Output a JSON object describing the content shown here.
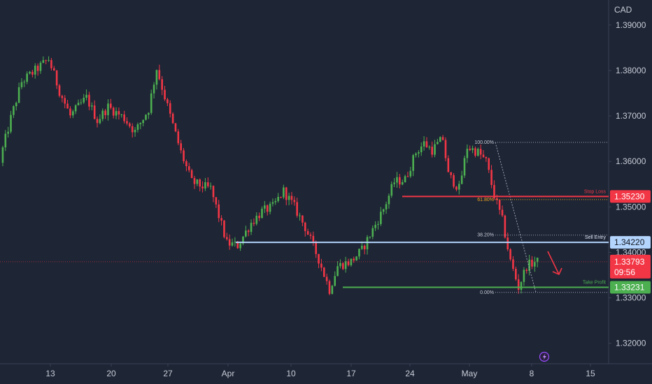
{
  "chart_data": {
    "type": "candlestick",
    "symbol_currency": "CAD",
    "ylim": [
      1.3155,
      1.3955
    ],
    "y_ticks": [
      "1.39000",
      "1.38000",
      "1.37000",
      "1.36000",
      "1.35000",
      "1.34000",
      "1.33000",
      "1.32000"
    ],
    "x_ticks": [
      "13",
      "20",
      "27",
      "Apr",
      "10",
      "17",
      "24",
      "May",
      "8",
      "15"
    ],
    "grid": false,
    "colors": {
      "background": "#1e2535",
      "up": "#4caf50",
      "down": "#f23645",
      "stop_loss": "#f23645",
      "entry": "#b3d4fc",
      "take_profit": "#4caf50",
      "fib": "#9aa1b1"
    },
    "key_points": [
      {
        "t": 0,
        "p": 1.3605
      },
      {
        "t": 4,
        "p": 1.3695
      },
      {
        "t": 8,
        "p": 1.3775
      },
      {
        "t": 12,
        "p": 1.3795
      },
      {
        "t": 18,
        "p": 1.3825
      },
      {
        "t": 22,
        "p": 1.3755
      },
      {
        "t": 26,
        "p": 1.37
      },
      {
        "t": 32,
        "p": 1.374
      },
      {
        "t": 36,
        "p": 1.369
      },
      {
        "t": 40,
        "p": 1.372
      },
      {
        "t": 46,
        "p": 1.3695
      },
      {
        "t": 50,
        "p": 1.3665
      },
      {
        "t": 55,
        "p": 1.3715
      },
      {
        "t": 58,
        "p": 1.3805
      },
      {
        "t": 63,
        "p": 1.37
      },
      {
        "t": 67,
        "p": 1.362
      },
      {
        "t": 71,
        "p": 1.3555
      },
      {
        "t": 75,
        "p": 1.3545
      },
      {
        "t": 78,
        "p": 1.354
      },
      {
        "t": 84,
        "p": 1.342
      },
      {
        "t": 88,
        "p": 1.3415
      },
      {
        "t": 93,
        "p": 1.3465
      },
      {
        "t": 97,
        "p": 1.349
      },
      {
        "t": 101,
        "p": 1.35
      },
      {
        "t": 105,
        "p": 1.3535
      },
      {
        "t": 109,
        "p": 1.35
      },
      {
        "t": 113,
        "p": 1.3455
      },
      {
        "t": 118,
        "p": 1.3385
      },
      {
        "t": 122,
        "p": 1.3318
      },
      {
        "t": 125,
        "p": 1.337
      },
      {
        "t": 130,
        "p": 1.338
      },
      {
        "t": 134,
        "p": 1.3405
      },
      {
        "t": 138,
        "p": 1.345
      },
      {
        "t": 142,
        "p": 1.3495
      },
      {
        "t": 146,
        "p": 1.3555
      },
      {
        "t": 150,
        "p": 1.356
      },
      {
        "t": 154,
        "p": 1.362
      },
      {
        "t": 157,
        "p": 1.364
      },
      {
        "t": 160,
        "p": 1.3625
      },
      {
        "t": 164,
        "p": 1.365
      },
      {
        "t": 166,
        "p": 1.357
      },
      {
        "t": 170,
        "p": 1.354
      },
      {
        "t": 173,
        "p": 1.3632
      },
      {
        "t": 177,
        "p": 1.362
      },
      {
        "t": 180,
        "p": 1.36
      },
      {
        "t": 183,
        "p": 1.3525
      },
      {
        "t": 186,
        "p": 1.347
      },
      {
        "t": 189,
        "p": 1.338
      },
      {
        "t": 192,
        "p": 1.3323
      },
      {
        "t": 195,
        "p": 1.337
      },
      {
        "t": 198,
        "p": 1.3379
      }
    ],
    "annotations": {
      "stop_loss": {
        "label": "Stop Loss",
        "price": 1.3523,
        "value_text": "1.35230"
      },
      "sell_entry": {
        "label": "Sell Entry",
        "price": 1.3422,
        "value_text": "1.34220"
      },
      "take_profit": {
        "label": "Take Profit",
        "price": 1.33231,
        "value_text": "1.33231"
      },
      "last_price": {
        "price": 1.33793,
        "value_text": "1.33793",
        "countdown": "09:56"
      },
      "fib_levels": [
        {
          "label": "100.00%",
          "price": 1.3642
        },
        {
          "label": "61.80%",
          "price": 1.3516
        },
        {
          "label": "38.20%",
          "price": 1.3438
        },
        {
          "label": "0.00%",
          "price": 1.3312
        }
      ],
      "arrow": "down"
    }
  },
  "price_axis": {
    "currency_label": "CAD"
  },
  "status_icon": "lightning-icon",
  "labels": {
    "stop_loss": "Stop Loss",
    "sell_entry": "Sell Entry",
    "take_profit": "Take Profit",
    "stop_loss_value": "1.35230",
    "sell_entry_value": "1.34220",
    "take_profit_value": "1.33231",
    "last_price_value": "1.33793",
    "countdown": "09:56",
    "fib_100": "100.00%",
    "fib_618": "61.80%",
    "fib_382": "38.20%",
    "fib_0": "0.00%"
  }
}
